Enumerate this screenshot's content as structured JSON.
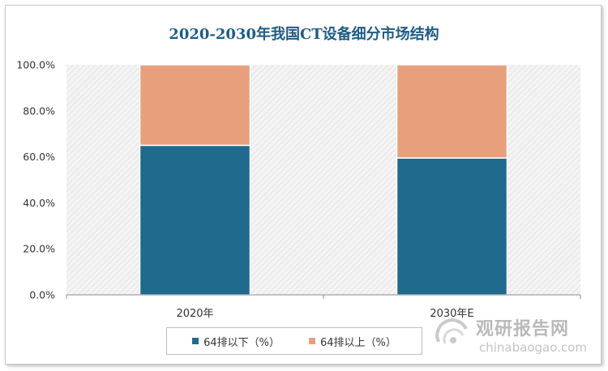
{
  "chart_data": {
    "type": "bar",
    "stacked": true,
    "title": "2020-2030年我国CT设备细分市场结构",
    "categories": [
      "2020年",
      "2030年E"
    ],
    "series": [
      {
        "name": "64排以下（%）",
        "values": [
          65.0,
          59.5
        ],
        "color": "#1f6a8d"
      },
      {
        "name": "64排以上（%）",
        "values": [
          35.0,
          40.5
        ],
        "color": "#e8a07c"
      }
    ],
    "yticks": [
      "0.0%",
      "20.0%",
      "40.0%",
      "60.0%",
      "80.0%",
      "100.0%"
    ],
    "ylim": [
      0,
      100
    ],
    "xlabel": "",
    "ylabel": "",
    "legend_position": "bottom",
    "grid": false
  },
  "watermark": {
    "cn": "观研报告网",
    "en": "chinabaogao.com",
    "color": "#a8a8a8"
  }
}
